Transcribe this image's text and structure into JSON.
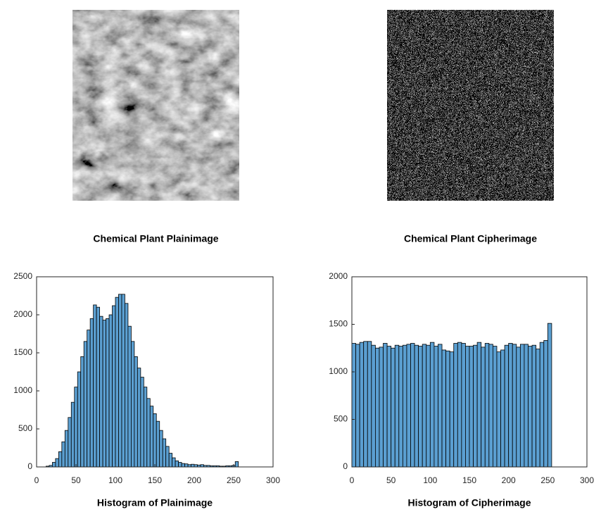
{
  "chart_data": [
    {
      "type": "image",
      "title": "Chemical Plant Plainimage"
    },
    {
      "type": "image",
      "title": "Chemical Plant Cipherimage"
    },
    {
      "type": "histogram",
      "xlabel": "Histogram of Plainimage",
      "color": "#5b9fd1",
      "edgecolor": "#000000",
      "bins": [
        12,
        16,
        20,
        24,
        28,
        32,
        36,
        40,
        44,
        48,
        52,
        56,
        60,
        64,
        68,
        72,
        76,
        80,
        84,
        88,
        92,
        96,
        100,
        104,
        108,
        112,
        116,
        120,
        124,
        128,
        132,
        136,
        140,
        144,
        148,
        152,
        156,
        160,
        164,
        168,
        172,
        176,
        180,
        184,
        188,
        192,
        196,
        200,
        204,
        208,
        212,
        216,
        220,
        224,
        228,
        232,
        236,
        240,
        244,
        248,
        252,
        256
      ],
      "values": [
        10,
        20,
        60,
        110,
        200,
        330,
        480,
        650,
        850,
        1050,
        1250,
        1450,
        1650,
        1800,
        1950,
        2130,
        2100,
        1980,
        1930,
        1950,
        2000,
        2120,
        2230,
        2270,
        2270,
        2150,
        1850,
        1650,
        1450,
        1300,
        1180,
        1050,
        900,
        800,
        700,
        600,
        480,
        370,
        270,
        180,
        120,
        80,
        60,
        45,
        40,
        30,
        35,
        30,
        25,
        30,
        20,
        20,
        15,
        15,
        15,
        10,
        10,
        15,
        15,
        20,
        70
      ],
      "xlim": [
        0,
        300
      ],
      "xticks": [
        0,
        50,
        100,
        150,
        200,
        250,
        300
      ],
      "ylim": [
        0,
        2500
      ],
      "yticks": [
        0,
        500,
        1000,
        1500,
        2000,
        2500
      ]
    },
    {
      "type": "histogram",
      "xlabel": "Histogram of Cipherimage",
      "color": "#5b9fd1",
      "edgecolor": "#000000",
      "bins": [
        0,
        5,
        10,
        15,
        20,
        25,
        30,
        35,
        40,
        45,
        50,
        55,
        60,
        65,
        70,
        75,
        80,
        85,
        90,
        95,
        100,
        105,
        110,
        115,
        120,
        125,
        130,
        135,
        140,
        145,
        150,
        155,
        160,
        165,
        170,
        175,
        180,
        185,
        190,
        195,
        200,
        205,
        210,
        215,
        220,
        225,
        230,
        235,
        240,
        245,
        250,
        255
      ],
      "values": [
        1300,
        1290,
        1310,
        1320,
        1320,
        1280,
        1250,
        1260,
        1300,
        1270,
        1250,
        1280,
        1270,
        1280,
        1290,
        1300,
        1280,
        1270,
        1290,
        1280,
        1310,
        1270,
        1290,
        1230,
        1220,
        1210,
        1300,
        1310,
        1300,
        1270,
        1270,
        1280,
        1310,
        1260,
        1300,
        1290,
        1270,
        1210,
        1230,
        1280,
        1300,
        1290,
        1260,
        1290,
        1290,
        1270,
        1280,
        1240,
        1310,
        1330,
        1510
      ],
      "xlim": [
        0,
        300
      ],
      "xticks": [
        0,
        50,
        100,
        150,
        200,
        250,
        300
      ],
      "ylim": [
        0,
        2000
      ],
      "yticks": [
        0,
        500,
        1000,
        1500,
        2000
      ]
    }
  ]
}
